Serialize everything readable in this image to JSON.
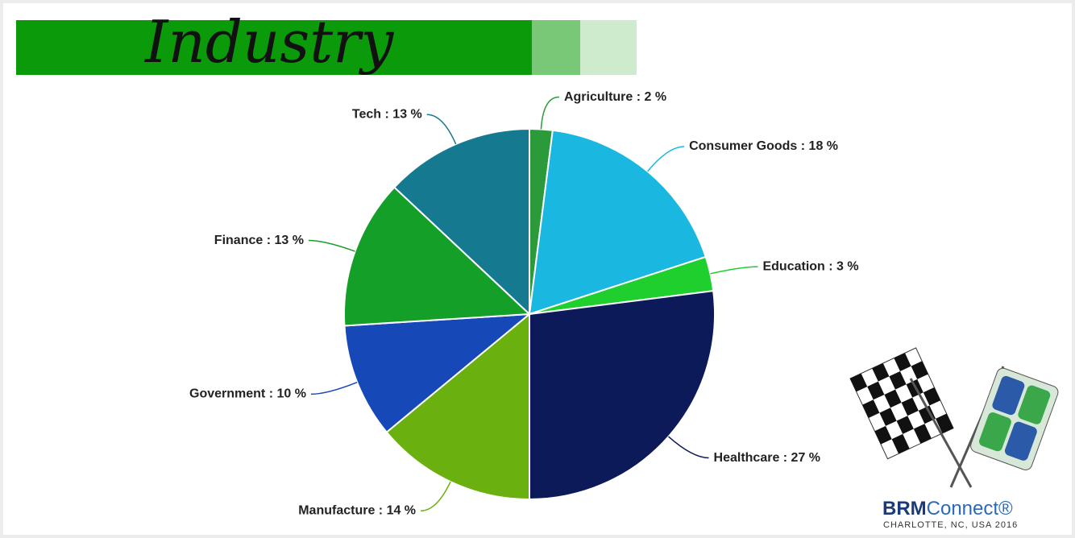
{
  "chart_data": {
    "type": "pie",
    "title": "Industry",
    "categories": [
      "Agriculture : 2 %",
      "Consumer Goods : 18 %",
      "Education : 3 %",
      "Healthcare : 27 %",
      "Manufacture : 14 %",
      "Government : 10 %",
      "Finance : 13 %",
      "Tech : 13 %"
    ],
    "values": [
      2,
      18,
      3,
      27,
      14,
      10,
      13,
      13
    ],
    "colors": [
      "#2a9a3a",
      "#1ab8e0",
      "#1ecf2e",
      "#0d1a5a",
      "#6ab00e",
      "#1648b8",
      "#14a028",
      "#157a90"
    ]
  },
  "logo": {
    "brand": "BRM",
    "brand_suffix": "Connect®",
    "tagline": "CHARLOTTE, NC, USA 2016"
  }
}
